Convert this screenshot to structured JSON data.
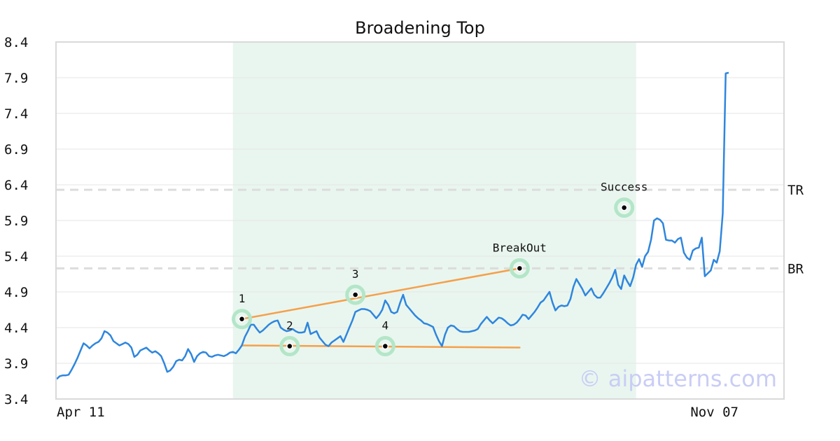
{
  "chart_data": {
    "type": "line",
    "title": "Broadening Top",
    "xlabel": "",
    "ylabel": "",
    "ylim": [
      3.4,
      8.4
    ],
    "y_ticks": [
      "3.4",
      "3.9",
      "4.4",
      "4.9",
      "5.4",
      "5.9",
      "6.4",
      "6.9",
      "7.4",
      "7.9",
      "8.4"
    ],
    "x_tick_labels": [
      {
        "index": 0,
        "label": "Apr 11"
      },
      {
        "index": 210,
        "label": "Nov 07"
      }
    ],
    "grid": true,
    "series": [
      {
        "color": "#2e86de",
        "values": [
          3.68,
          3.72,
          3.73,
          3.73,
          3.74,
          3.81,
          3.89,
          3.98,
          4.08,
          4.18,
          4.15,
          4.11,
          4.15,
          4.18,
          4.2,
          4.25,
          4.35,
          4.33,
          4.29,
          4.21,
          4.18,
          4.15,
          4.17,
          4.19,
          4.17,
          4.12,
          3.99,
          4.02,
          4.08,
          4.1,
          4.12,
          4.08,
          4.05,
          4.07,
          4.04,
          4.0,
          3.9,
          3.78,
          3.8,
          3.85,
          3.93,
          3.95,
          3.94,
          4.0,
          4.1,
          4.03,
          3.92,
          4.0,
          4.04,
          4.06,
          4.05,
          4.0,
          3.99,
          4.01,
          4.02,
          4.01,
          4.0,
          4.02,
          4.05,
          4.06,
          4.04,
          4.09,
          4.15,
          4.27,
          4.35,
          4.44,
          4.44,
          4.38,
          4.33,
          4.36,
          4.4,
          4.44,
          4.47,
          4.49,
          4.5,
          4.4,
          4.37,
          4.35,
          4.36,
          4.38,
          4.35,
          4.33,
          4.33,
          4.34,
          4.47,
          4.31,
          4.33,
          4.35,
          4.26,
          4.21,
          4.16,
          4.14,
          4.19,
          4.22,
          4.25,
          4.28,
          4.2,
          4.3,
          4.4,
          4.5,
          4.62,
          4.64,
          4.66,
          4.66,
          4.65,
          4.63,
          4.58,
          4.53,
          4.58,
          4.65,
          4.78,
          4.72,
          4.62,
          4.6,
          4.62,
          4.75,
          4.86,
          4.72,
          4.67,
          4.62,
          4.57,
          4.53,
          4.5,
          4.46,
          4.45,
          4.43,
          4.41,
          4.3,
          4.21,
          4.14,
          4.3,
          4.4,
          4.43,
          4.42,
          4.38,
          4.35,
          4.34,
          4.34,
          4.34,
          4.35,
          4.36,
          4.38,
          4.45,
          4.5,
          4.55,
          4.5,
          4.46,
          4.5,
          4.54,
          4.53,
          4.5,
          4.46,
          4.43,
          4.44,
          4.47,
          4.52,
          4.58,
          4.57,
          4.52,
          4.57,
          4.62,
          4.68,
          4.75,
          4.78,
          4.84,
          4.9,
          4.75,
          4.64,
          4.69,
          4.71,
          4.7,
          4.71,
          4.8,
          4.97,
          5.08,
          5.01,
          4.94,
          4.85,
          4.9,
          4.95,
          4.86,
          4.82,
          4.82,
          4.88,
          4.95,
          5.02,
          5.1,
          5.21,
          5.0,
          4.94,
          5.13,
          5.05,
          4.98,
          5.1,
          5.28,
          5.36,
          5.25,
          5.4,
          5.46,
          5.63,
          5.9,
          5.93,
          5.91,
          5.86,
          5.63,
          5.62,
          5.62,
          5.59,
          5.64,
          5.66,
          5.45,
          5.38,
          5.35,
          5.48,
          5.51,
          5.52,
          5.66,
          5.12,
          5.16,
          5.2,
          5.35,
          5.31,
          5.47,
          6.0,
          7.96,
          7.97
        ]
      }
    ],
    "shaded_region": {
      "from_index": 59,
      "to_index": 194,
      "color": "#e9f6ef"
    },
    "horizontal_lines": [
      {
        "label": "TR",
        "value": 6.33
      },
      {
        "label": "BR",
        "value": 5.23
      }
    ],
    "trendlines": [
      {
        "from": {
          "index": 62,
          "value": 4.52
        },
        "to": {
          "index": 155,
          "value": 5.23
        }
      },
      {
        "from": {
          "index": 62,
          "value": 4.15
        },
        "to": {
          "index": 155,
          "value": 4.12
        }
      }
    ],
    "points": [
      {
        "label": "1",
        "index": 62,
        "value": 4.52
      },
      {
        "label": "2",
        "index": 78,
        "value": 4.14
      },
      {
        "label": "3",
        "index": 100,
        "value": 4.86
      },
      {
        "label": "4",
        "index": 110,
        "value": 4.14
      },
      {
        "label": "BreakOut",
        "index": 155,
        "value": 5.23
      },
      {
        "label": "Success",
        "index": 190,
        "value": 6.08
      }
    ],
    "colors": {
      "line": "#2e86de",
      "trend": "#f5a04a",
      "marker_halo": "#b3e6c8",
      "shade": "#e9f6ef"
    }
  },
  "watermark": "© aipatterns.com"
}
